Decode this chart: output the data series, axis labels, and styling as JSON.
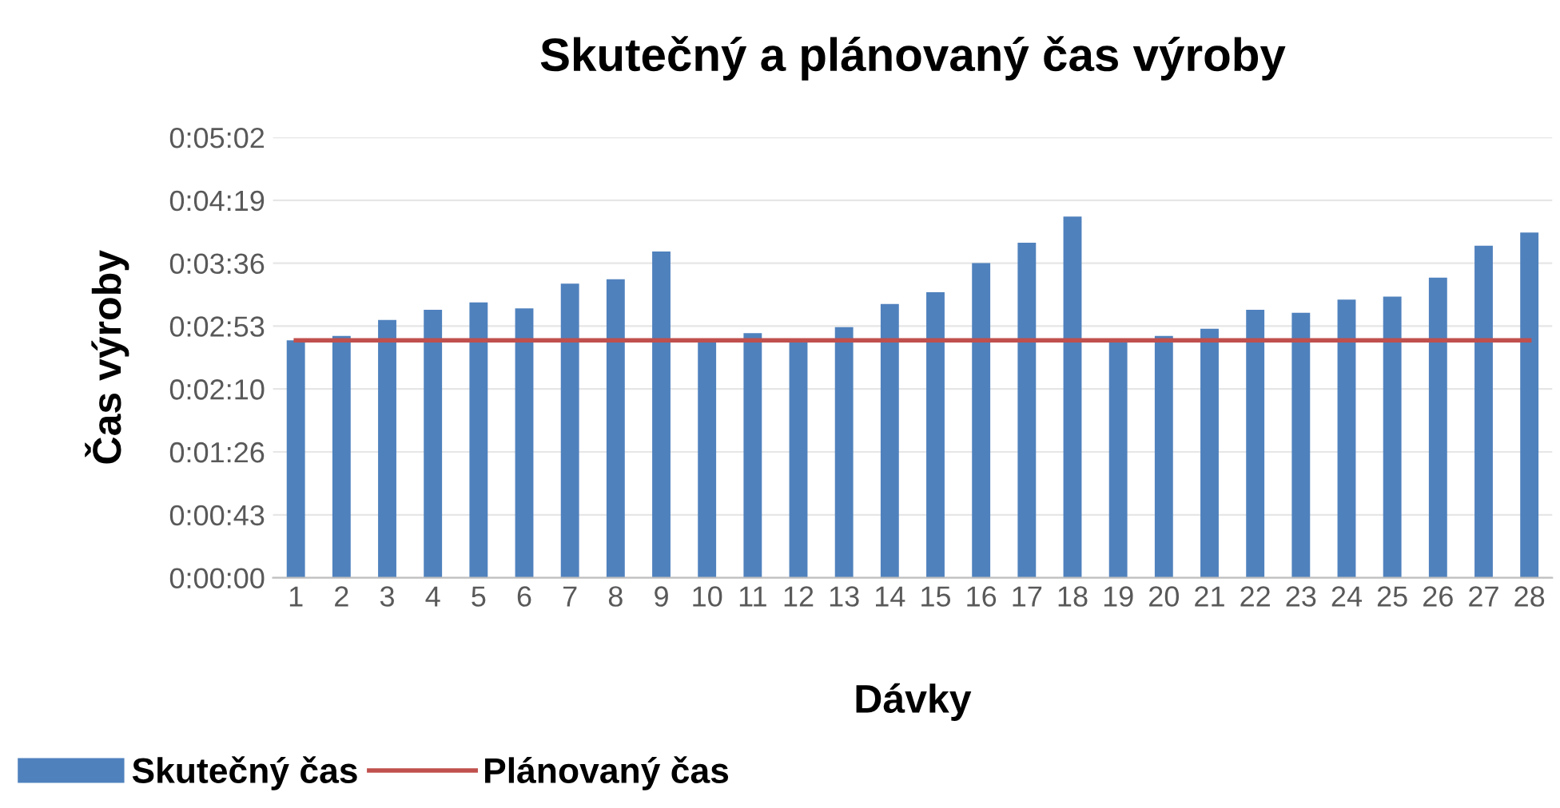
{
  "chart_data": {
    "type": "bar",
    "title": "Skutečný a plánovaný čas výroby",
    "xlabel": "Dávky",
    "ylabel": "Čas výroby",
    "categories": [
      "1",
      "2",
      "3",
      "4",
      "5",
      "6",
      "7",
      "8",
      "9",
      "10",
      "11",
      "12",
      "13",
      "14",
      "15",
      "16",
      "17",
      "18",
      "19",
      "20",
      "21",
      "22",
      "23",
      "24",
      "25",
      "26",
      "27",
      "28"
    ],
    "series": [
      {
        "name": "Skutečný čas",
        "color": "#4f81bd",
        "values": [
          163,
          166,
          177,
          184,
          189,
          185,
          202,
          205,
          224,
          164,
          168,
          164,
          172,
          188,
          196,
          216,
          230,
          248,
          164,
          166,
          171,
          184,
          182,
          191,
          193,
          206,
          228,
          237
        ]
      },
      {
        "name": "Plánovaný čas",
        "type": "line",
        "color": "#c0504d",
        "values": [
          163,
          163,
          163,
          163,
          163,
          163,
          163,
          163,
          163,
          163,
          163,
          163,
          163,
          163,
          163,
          163,
          163,
          163,
          163,
          163,
          163,
          163,
          163,
          163,
          163,
          163,
          163,
          163
        ]
      }
    ],
    "ylim": [
      0,
      302.4
    ],
    "yticks": [
      {
        "value": 0,
        "label": "0:00:00"
      },
      {
        "value": 43.2,
        "label": "0:00:43"
      },
      {
        "value": 86.4,
        "label": "0:01:26"
      },
      {
        "value": 129.6,
        "label": "0:02:10"
      },
      {
        "value": 172.8,
        "label": "0:02:53"
      },
      {
        "value": 216,
        "label": "0:03:36"
      },
      {
        "value": 259.2,
        "label": "0:04:19"
      },
      {
        "value": 302.4,
        "label": "0:05:02"
      }
    ],
    "grid": "y",
    "legend": "bottom left"
  }
}
